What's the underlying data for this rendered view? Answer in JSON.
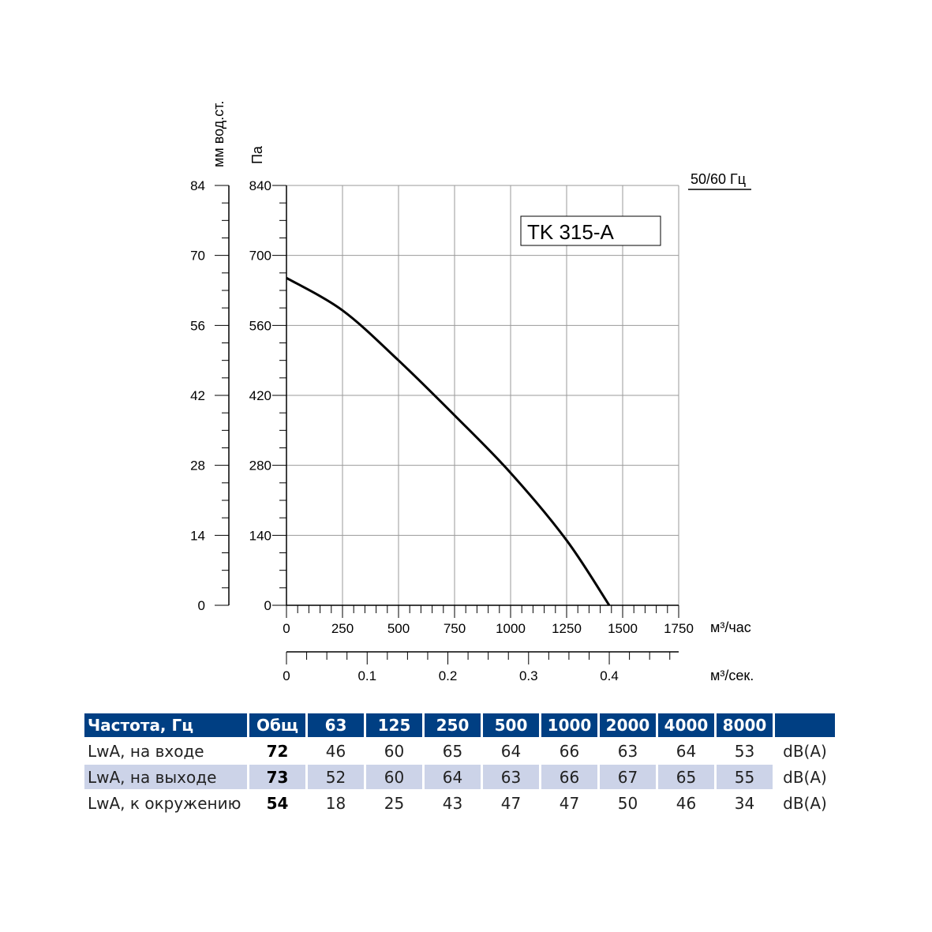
{
  "chart_data": {
    "type": "line",
    "model": "TK 315-A",
    "frequency_label": "50/60 Гц",
    "y_left_label": "мм вод.ст.",
    "y_right_label": "Па",
    "x_label": "м³/час",
    "x2_label": "м³/сек.",
    "x_ticks": [
      0,
      250,
      500,
      750,
      1000,
      1250,
      1500,
      1750
    ],
    "x2_ticks": [
      "0",
      "0.1",
      "0.2",
      "0.3",
      "0.4"
    ],
    "y_ticks_pa": [
      0,
      140,
      280,
      420,
      560,
      700,
      840
    ],
    "y_ticks_mm": [
      0,
      14,
      28,
      42,
      56,
      70,
      84
    ],
    "xlim": [
      0,
      1750
    ],
    "ylim": [
      0,
      840
    ],
    "x2lim": [
      0,
      0.486
    ],
    "series": [
      {
        "x": [
          0,
          250,
          500,
          750,
          1000,
          1250,
          1440
        ],
        "y": [
          655,
          590,
          490,
          380,
          265,
          130,
          0
        ]
      }
    ]
  },
  "table": {
    "headers": [
      "Частота, Гц",
      "Общ",
      "63",
      "125",
      "250",
      "500",
      "1000",
      "2000",
      "4000",
      "8000",
      ""
    ],
    "rows": [
      {
        "label": "LwA, на входе",
        "total": "72",
        "values": [
          "46",
          "60",
          "65",
          "64",
          "66",
          "63",
          "64",
          "53"
        ],
        "unit": "dB(A)"
      },
      {
        "label": "LwA, на выходе",
        "total": "73",
        "values": [
          "52",
          "60",
          "64",
          "63",
          "66",
          "67",
          "65",
          "55"
        ],
        "unit": "dB(A)"
      },
      {
        "label": "LwA, к окружению",
        "total": "54",
        "values": [
          "18",
          "25",
          "43",
          "47",
          "47",
          "50",
          "46",
          "34"
        ],
        "unit": "dB(A)"
      }
    ]
  }
}
